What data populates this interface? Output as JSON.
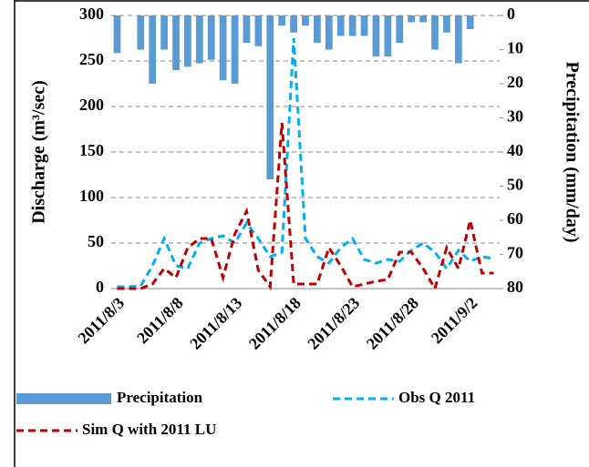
{
  "chart_data": {
    "type": "bar",
    "y_label": "Discharge (m³/sec)",
    "y2_label": "Precipitation (mm/day)",
    "categories": [
      "2011/8/3",
      null,
      null,
      null,
      null,
      "2011/8/8",
      null,
      null,
      null,
      null,
      "2011/8/13",
      null,
      null,
      null,
      null,
      "2011/8/18",
      null,
      null,
      null,
      null,
      "2011/8/23",
      null,
      null,
      null,
      null,
      "2011/8/28",
      null,
      null,
      null,
      null,
      "2011/9/2",
      null,
      null
    ],
    "series": [
      {
        "name": "Precipitation",
        "type": "bar",
        "axis": "y2",
        "color": "#5b9bd5",
        "values": [
          11,
          0,
          10,
          20,
          10,
          16,
          15,
          14,
          13,
          19,
          20,
          8,
          9,
          48,
          3,
          5,
          3,
          8,
          10,
          6,
          6,
          6,
          12,
          12,
          8,
          2,
          2,
          10,
          5,
          14,
          4,
          0,
          0
        ]
      },
      {
        "name": "Obs Q 2011",
        "type": "line",
        "color": "#00b0f0",
        "values": [
          2,
          2,
          3,
          25,
          55,
          25,
          22,
          50,
          55,
          58,
          50,
          72,
          55,
          35,
          40,
          275,
          55,
          35,
          28,
          45,
          55,
          32,
          28,
          32,
          30,
          42,
          50,
          40,
          22,
          42,
          30,
          35,
          33
        ]
      },
      {
        "name": "Sim Q with 2011 LU",
        "type": "line",
        "color": "#c00000",
        "values": [
          0,
          0,
          0,
          5,
          22,
          12,
          45,
          55,
          55,
          12,
          60,
          85,
          20,
          2,
          182,
          5,
          5,
          5,
          45,
          25,
          2,
          5,
          8,
          10,
          40,
          40,
          22,
          0,
          45,
          22,
          75,
          17,
          17
        ]
      }
    ],
    "ylim": [
      0,
      300
    ],
    "yticks": [
      0,
      50,
      100,
      150,
      200,
      250,
      300
    ],
    "y2lim": [
      0,
      80
    ],
    "y2ticks": [
      0,
      10,
      20,
      30,
      40,
      50,
      60,
      70,
      80
    ],
    "y2_inverted": true,
    "grid": true
  }
}
